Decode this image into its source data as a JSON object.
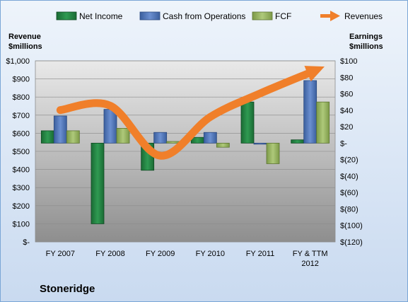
{
  "chart_data": {
    "type": "bar",
    "title": "Stoneridge",
    "categories": [
      "FY 2007",
      "FY 2008",
      "FY 2009",
      "FY 2010",
      "FY 2011",
      "FY & TTM 2012"
    ],
    "category_lines": [
      [
        "FY 2007"
      ],
      [
        "FY 2008"
      ],
      [
        "FY 2009"
      ],
      [
        "FY 2010"
      ],
      [
        "FY 2011"
      ],
      [
        "FY & TTM",
        "2012"
      ]
    ],
    "y_left": {
      "label_lines": [
        "Revenue",
        "$millions"
      ],
      "range": [
        0,
        1000
      ],
      "ticks": [
        "$1,000",
        "$900",
        "$800",
        "$700",
        "$600",
        "$500",
        "$400",
        "$300",
        "$200",
        "$100",
        "$-"
      ]
    },
    "y_right": {
      "label_lines": [
        "Earnings",
        "$millions"
      ],
      "range": [
        -120,
        100
      ],
      "ticks": [
        "$100",
        "$80",
        "$60",
        "$40",
        "$20",
        "$-",
        "$(20)",
        "$(40)",
        "$(60)",
        "$(80)",
        "$(100)",
        "$(120)"
      ]
    },
    "series": [
      {
        "name": "Net Income",
        "type": "bar",
        "axis": "right",
        "color": "#1e7a3c",
        "values": [
          15,
          -98,
          -33,
          7,
          50,
          4
        ]
      },
      {
        "name": "Cash from Operations",
        "type": "bar",
        "axis": "right",
        "color": "#4a6fb5",
        "values": [
          33,
          41,
          13,
          13,
          0,
          76
        ]
      },
      {
        "name": "FCF",
        "type": "bar",
        "axis": "right",
        "color": "#8fae5a",
        "values": [
          15,
          18,
          2,
          -5,
          -25,
          50
        ]
      },
      {
        "name": "Revenues",
        "type": "line",
        "axis": "left",
        "color": "#f07f2a",
        "values": [
          728,
          752,
          476,
          690,
          820,
          935
        ]
      }
    ],
    "legend": "top",
    "grid": true
  }
}
